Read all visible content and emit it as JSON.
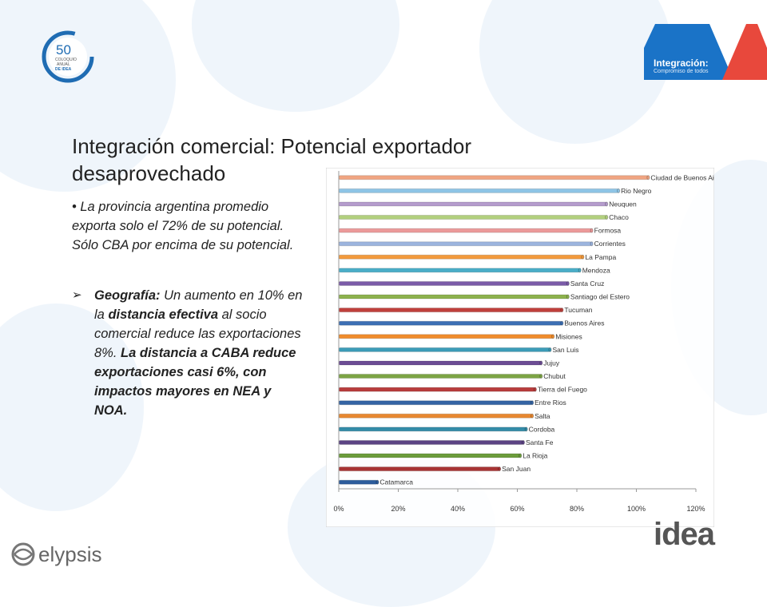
{
  "header": {
    "logo_50": {
      "number": "50",
      "line1": "COLOQUIO",
      "line2": "ANUAL",
      "line3": "DE IDEA"
    },
    "brand": {
      "title": "Integración:",
      "subtitle": "Compromiso de todos",
      "accent_color": "#1a73c7"
    }
  },
  "slide": {
    "title": "Integración comercial: Potencial exportador desaprovechado",
    "bullet1": "• La provincia argentina promedio exporta solo el 72% de su potencial. Sólo CBA por encima de su potencial.",
    "bullet2_arrow": "➢",
    "bullet2_p1": "Geografía:",
    "bullet2_p2": " Un aumento en 10% en la ",
    "bullet2_p3": "distancia efectiva",
    "bullet2_p4": " al socio comercial reduce las exportaciones 8%. ",
    "bullet2_p5": "La distancia a CABA reduce exportaciones casi 6%, con impactos mayores en NEA y NOA."
  },
  "footer": {
    "idea_logo": "idea",
    "elypsis_logo": "elypsis"
  },
  "chart_data": {
    "type": "bar",
    "orientation": "horizontal",
    "grid": false,
    "legend": false,
    "xlim": [
      0,
      1.2
    ],
    "x_ticks": [
      "0%",
      "20%",
      "40%",
      "60%",
      "80%",
      "100%",
      "120%"
    ],
    "categories": [
      "Ciudad de Buenos Aires",
      "Rio Negro",
      "Neuquen",
      "Chaco",
      "Formosa",
      "Corrientes",
      "La Pampa",
      "Mendoza",
      "Santa Cruz",
      "Santiago del Estero",
      "Tucuman",
      "Buenos Aires",
      "Misiones",
      "San Luis",
      "Jujuy",
      "Chubut",
      "Tierra del Fuego",
      "Entre Rios",
      "Salta",
      "Cordoba",
      "Santa Fe",
      "La Rioja",
      "San Juan",
      "Catamarca"
    ],
    "values": [
      1.04,
      0.94,
      0.9,
      0.9,
      0.85,
      0.85,
      0.82,
      0.81,
      0.77,
      0.77,
      0.75,
      0.75,
      0.72,
      0.71,
      0.68,
      0.68,
      0.66,
      0.65,
      0.65,
      0.63,
      0.62,
      0.61,
      0.54,
      0.13
    ],
    "colors": [
      "#f0a582",
      "#8ec5e6",
      "#b49ccc",
      "#b2d07e",
      "#ec9a9a",
      "#9cb4de",
      "#f39a3c",
      "#4aaec8",
      "#7b5ba8",
      "#8db24e",
      "#c0403c",
      "#3c6fb4",
      "#f08c2c",
      "#3c9cb8",
      "#6c4c94",
      "#7ca444",
      "#b83c3c",
      "#3464a4",
      "#e88830",
      "#348ca8",
      "#5c4484",
      "#6c9c3c",
      "#a83434",
      "#2c5c9c"
    ]
  }
}
